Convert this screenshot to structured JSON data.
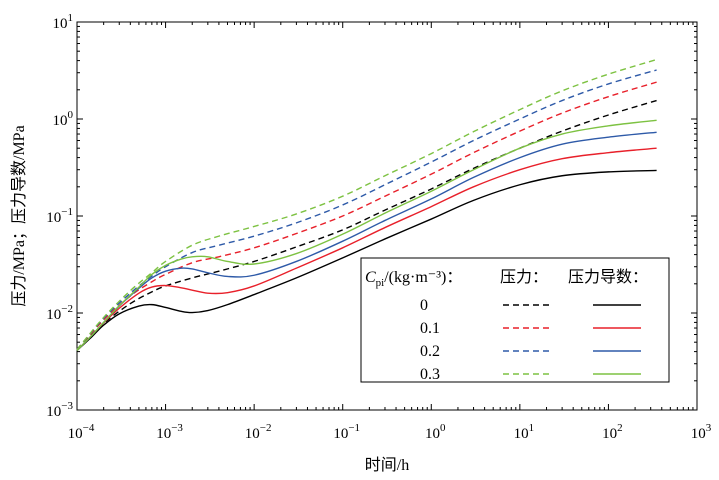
{
  "chart_data": {
    "type": "line",
    "xlabel": "时间/h",
    "ylabel": "压力/MPa；压力导数/MPa",
    "xscale": "log",
    "yscale": "log",
    "xlim": [
      0.0001,
      1000
    ],
    "ylim": [
      0.001,
      10
    ],
    "x_ticks": [
      {
        "base": "10",
        "exp": "−4"
      },
      {
        "base": "10",
        "exp": "−3"
      },
      {
        "base": "10",
        "exp": "−2"
      },
      {
        "base": "10",
        "exp": "−1"
      },
      {
        "base": "10",
        "exp": "0"
      },
      {
        "base": "10",
        "exp": "1"
      },
      {
        "base": "10",
        "exp": "2"
      },
      {
        "base": "10",
        "exp": "3"
      }
    ],
    "y_ticks": [
      {
        "base": "10",
        "exp": "−3"
      },
      {
        "base": "10",
        "exp": "−2"
      },
      {
        "base": "10",
        "exp": "−1"
      },
      {
        "base": "10",
        "exp": "0"
      },
      {
        "base": "10",
        "exp": "1"
      }
    ],
    "legend": {
      "placement": "lower-right",
      "title_var": "C",
      "title_sub": "pi",
      "title_rest": "/(kg·m⁻³)：",
      "col_pressure": "压力：",
      "col_derivative": "压力导数：",
      "entries": [
        "0",
        "0.1",
        "0.2",
        "0.3"
      ]
    },
    "series": [
      {
        "cpi": "0",
        "color": "#000000",
        "kind": "pressure",
        "x": [
          0.0001,
          0.0002,
          0.0004,
          0.0007,
          0.001,
          0.002,
          0.004,
          0.01,
          0.03,
          0.1,
          0.3,
          1,
          3,
          10,
          30,
          100,
          350
        ],
        "y": [
          0.0042,
          0.0078,
          0.0125,
          0.0165,
          0.019,
          0.023,
          0.027,
          0.034,
          0.048,
          0.072,
          0.115,
          0.19,
          0.31,
          0.5,
          0.75,
          1.1,
          1.55
        ]
      },
      {
        "cpi": "0.1",
        "color": "#e8202a",
        "kind": "pressure",
        "x": [
          0.0001,
          0.0002,
          0.0004,
          0.0007,
          0.001,
          0.002,
          0.004,
          0.01,
          0.03,
          0.1,
          0.3,
          1,
          3,
          10,
          30,
          100,
          350
        ],
        "y": [
          0.0042,
          0.0085,
          0.015,
          0.021,
          0.025,
          0.033,
          0.038,
          0.047,
          0.066,
          0.1,
          0.16,
          0.27,
          0.45,
          0.75,
          1.15,
          1.7,
          2.4
        ]
      },
      {
        "cpi": "0.2",
        "color": "#2e5aa8",
        "kind": "pressure",
        "x": [
          0.0001,
          0.0002,
          0.0004,
          0.0007,
          0.001,
          0.002,
          0.004,
          0.01,
          0.03,
          0.1,
          0.3,
          1,
          3,
          10,
          30,
          100,
          350
        ],
        "y": [
          0.0042,
          0.0088,
          0.016,
          0.024,
          0.03,
          0.042,
          0.05,
          0.062,
          0.085,
          0.13,
          0.21,
          0.36,
          0.6,
          1.0,
          1.55,
          2.3,
          3.2
        ]
      },
      {
        "cpi": "0.3",
        "color": "#7dc242",
        "kind": "pressure",
        "x": [
          0.0001,
          0.0002,
          0.0004,
          0.0007,
          0.001,
          0.002,
          0.004,
          0.01,
          0.03,
          0.1,
          0.3,
          1,
          3,
          10,
          30,
          100,
          350
        ],
        "y": [
          0.0042,
          0.009,
          0.017,
          0.026,
          0.034,
          0.05,
          0.062,
          0.078,
          0.105,
          0.16,
          0.26,
          0.44,
          0.74,
          1.25,
          1.95,
          2.9,
          4.1
        ]
      },
      {
        "cpi": "0",
        "color": "#000000",
        "kind": "derivative",
        "x": [
          0.0001,
          0.00015,
          0.0002,
          0.0003,
          0.0005,
          0.0007,
          0.001,
          0.0015,
          0.002,
          0.003,
          0.005,
          0.01,
          0.03,
          0.1,
          0.3,
          1,
          3,
          10,
          30,
          100,
          350
        ],
        "y": [
          0.0041,
          0.0058,
          0.0075,
          0.0098,
          0.0118,
          0.0122,
          0.0114,
          0.0104,
          0.0101,
          0.0106,
          0.0122,
          0.0155,
          0.023,
          0.037,
          0.058,
          0.093,
          0.145,
          0.21,
          0.26,
          0.285,
          0.295
        ]
      },
      {
        "cpi": "0.1",
        "color": "#e8202a",
        "kind": "derivative",
        "x": [
          0.0001,
          0.00015,
          0.0002,
          0.0003,
          0.0005,
          0.0007,
          0.001,
          0.0015,
          0.002,
          0.003,
          0.005,
          0.01,
          0.03,
          0.1,
          0.3,
          1,
          3,
          10,
          30,
          100,
          350
        ],
        "y": [
          0.0041,
          0.006,
          0.0079,
          0.0112,
          0.016,
          0.0185,
          0.0192,
          0.0182,
          0.0172,
          0.016,
          0.0162,
          0.019,
          0.029,
          0.047,
          0.076,
          0.125,
          0.2,
          0.3,
          0.39,
          0.45,
          0.5
        ]
      },
      {
        "cpi": "0.2",
        "color": "#2e5aa8",
        "kind": "derivative",
        "x": [
          0.0001,
          0.00015,
          0.0002,
          0.0003,
          0.0005,
          0.0007,
          0.001,
          0.0015,
          0.002,
          0.003,
          0.005,
          0.01,
          0.03,
          0.1,
          0.3,
          1,
          3,
          10,
          30,
          100,
          350
        ],
        "y": [
          0.0041,
          0.006,
          0.008,
          0.0118,
          0.018,
          0.023,
          0.027,
          0.029,
          0.0285,
          0.026,
          0.0238,
          0.0245,
          0.034,
          0.055,
          0.09,
          0.15,
          0.25,
          0.4,
          0.55,
          0.65,
          0.73
        ]
      },
      {
        "cpi": "0.3",
        "color": "#7dc242",
        "kind": "derivative",
        "x": [
          0.0001,
          0.00015,
          0.0002,
          0.0003,
          0.0005,
          0.0007,
          0.001,
          0.0015,
          0.002,
          0.003,
          0.005,
          0.01,
          0.03,
          0.1,
          0.3,
          1,
          3,
          10,
          30,
          100,
          350
        ],
        "y": [
          0.0041,
          0.006,
          0.008,
          0.0119,
          0.0185,
          0.025,
          0.031,
          0.036,
          0.038,
          0.038,
          0.034,
          0.032,
          0.041,
          0.065,
          0.107,
          0.18,
          0.3,
          0.5,
          0.7,
          0.85,
          0.97
        ]
      }
    ]
  }
}
